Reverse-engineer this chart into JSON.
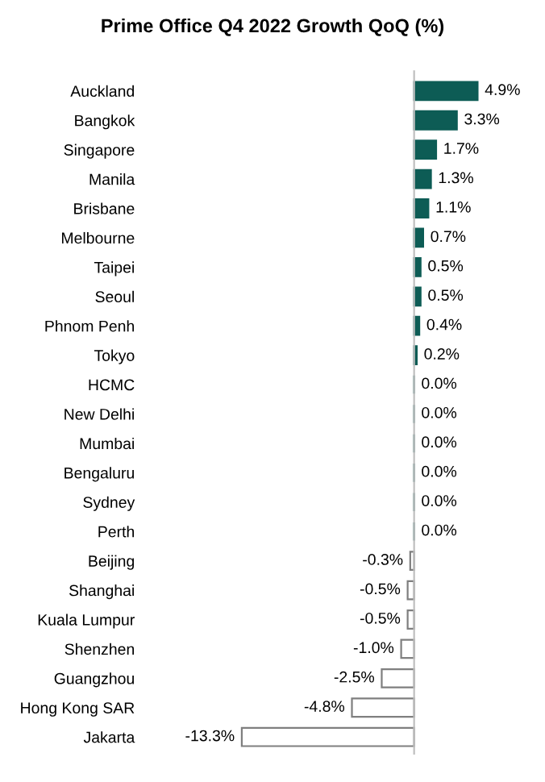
{
  "chart_data": {
    "type": "bar",
    "orientation": "horizontal",
    "title": "Prime Office Q4 2022 Growth QoQ (%)",
    "categories": [
      "Auckland",
      "Bangkok",
      "Singapore",
      "Manila",
      "Brisbane",
      "Melbourne",
      "Taipei",
      "Seoul",
      "Phnom Penh",
      "Tokyo",
      "HCMC",
      "New Delhi",
      "Mumbai",
      "Bengaluru",
      "Sydney",
      "Perth",
      "Beijing",
      "Shanghai",
      "Kuala Lumpur",
      "Shenzhen",
      "Guangzhou",
      "Hong Kong SAR",
      "Jakarta"
    ],
    "values": [
      4.9,
      3.3,
      1.7,
      1.3,
      1.1,
      0.7,
      0.5,
      0.5,
      0.4,
      0.2,
      0.0,
      0.0,
      0.0,
      0.0,
      0.0,
      0.0,
      -0.3,
      -0.5,
      -0.5,
      -1.0,
      -2.5,
      -4.8,
      -13.3
    ],
    "colors": [
      "#0d5c55",
      "#0d5c55",
      "#0d5c55",
      "#0d5c55",
      "#0d5c55",
      "#0d5c55",
      "#0d5c55",
      "#0d5c55",
      "#0d5c55",
      "#0d5c55",
      "#0d5c55",
      "#0d5c55",
      "#0d5c55",
      "#0d5c55",
      "#0d5c55",
      "#0d5c55",
      "#ffffff",
      "#ffffff",
      "#ffffff",
      "#ffffff",
      "#ffffff",
      "#ffffff",
      "#ffffff"
    ],
    "value_labels": [
      "4.9%",
      "3.3%",
      "1.7%",
      "1.3%",
      "1.1%",
      "0.7%",
      "0.5%",
      "0.5%",
      "0.4%",
      "0.2%",
      "0.0%",
      "0.0%",
      "0.0%",
      "0.0%",
      "0.0%",
      "0.0%",
      "-0.3%",
      "-0.5%",
      "-0.5%",
      "-1.0%",
      "-2.5%",
      "-4.8%",
      "-13.3%"
    ],
    "grid": false,
    "legend": false
  }
}
